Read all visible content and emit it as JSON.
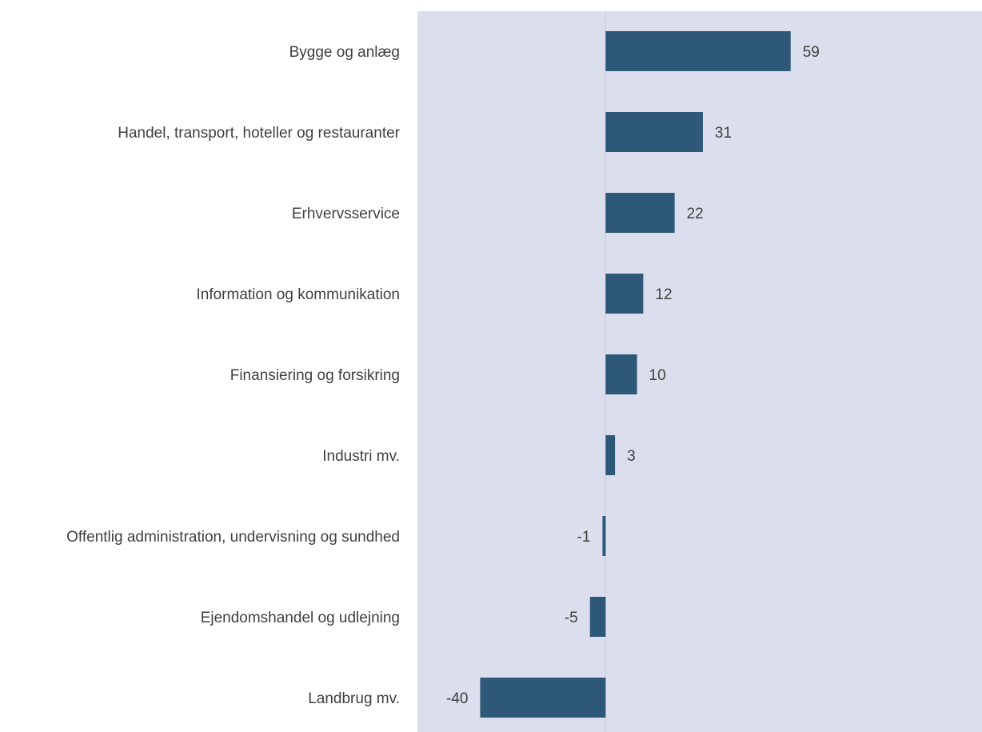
{
  "chart_data": {
    "type": "bar",
    "orientation": "horizontal",
    "categories": [
      "Bygge og anlæg",
      "Handel, transport, hoteller og restauranter",
      "Erhvervsservice",
      "Information og kommunikation",
      "Finansiering og forsikring",
      "Industri mv.",
      "Offentlig administration, undervisning og sundhed",
      "Ejendomshandel og udlejning",
      "Landbrug mv."
    ],
    "values": [
      59,
      31,
      22,
      12,
      10,
      3,
      -1,
      -5,
      -40
    ],
    "value_labels": [
      "59",
      "31",
      "22",
      "12",
      "10",
      "3",
      "-1",
      "-5",
      "-40"
    ],
    "xlim": [
      -60,
      120
    ],
    "grid": false,
    "legend": "none",
    "colors": {
      "bar": "#2e5878",
      "plot_background": "#dbdeec",
      "zero_line": "#c8cbd8",
      "text": "#404040"
    }
  }
}
